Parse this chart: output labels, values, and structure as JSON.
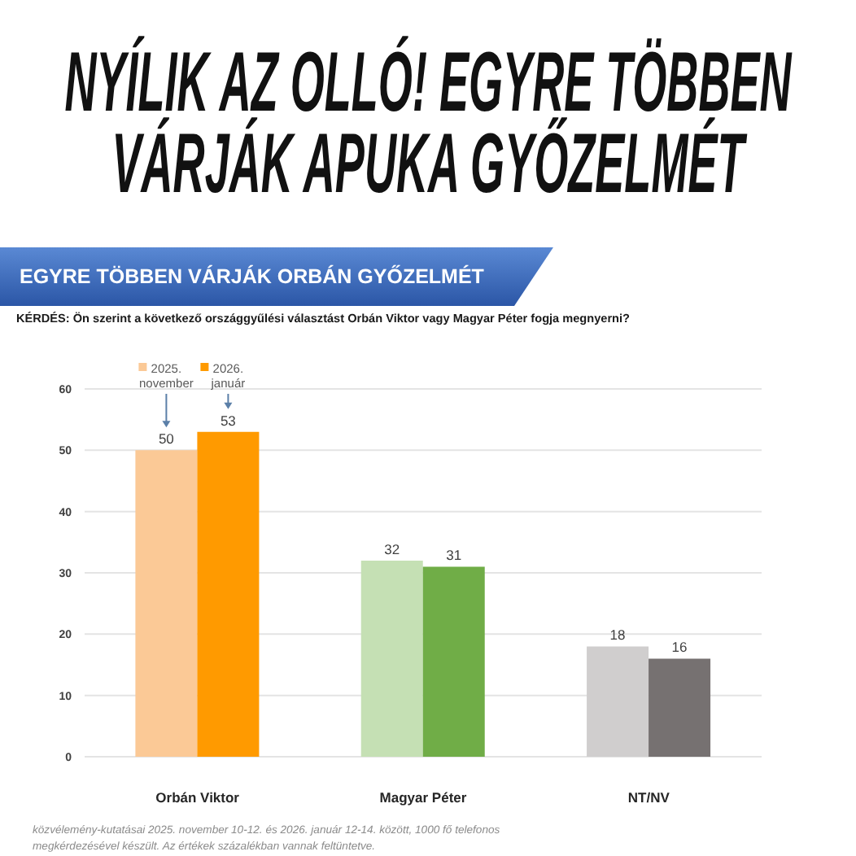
{
  "chart_data": {
    "type": "bar",
    "title": "NYÍLIK AZ OLLÓ! EGYRE TÖBBEN\nVÁRJÁK APUKA GYŐZELMÉT",
    "subtitle": "EGYRE TÖBBEN VÁRJÁK ORBÁN GYŐZELMÉT",
    "annotations": [
      "KÉRDÉS: Ön szerint a következő országgyűlési választást Orbán Viktor vagy Magyar Péter fogja megnyerni?",
      "közvélemény-kutatásai 2025. november 10-12. és 2026. január 12-14. között, 1000 fő telefonos megkérdezésével készült. Az értékek százalékban vannak feltüntetve."
    ],
    "categories": [
      "Orbán Viktor",
      "Magyar Péter",
      "NT/NV"
    ],
    "series": [
      {
        "name": "2025. november",
        "colors": [
          "#fbc996",
          "#c5e0b4",
          "#d0cece"
        ],
        "values": [
          50,
          32,
          18
        ]
      },
      {
        "name": "2026. január",
        "colors": [
          "#ff9a00",
          "#70ad47",
          "#767171"
        ],
        "values": [
          53,
          31,
          16
        ]
      }
    ],
    "ylim": [
      0,
      60
    ],
    "yticks": [
      0,
      10,
      20,
      30,
      40,
      50,
      60
    ],
    "grid": "y",
    "data_labels": true,
    "legend": "top left"
  }
}
